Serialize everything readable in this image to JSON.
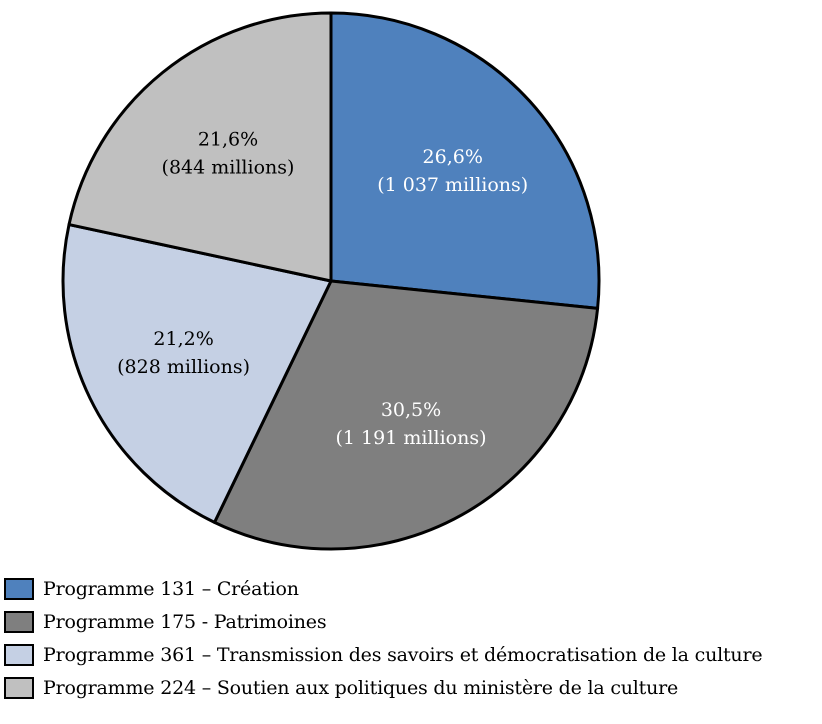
{
  "chart_data": {
    "type": "pie",
    "categories": [
      "Programme 131 – Création",
      "Programme 175 - Patrimoines",
      "Programme 361 – Transmission des savoirs et démocratisation de la culture",
      "Programme 224 – Soutien aux politiques du ministère de la culture"
    ],
    "values": [
      26.6,
      30.5,
      21.2,
      21.6
    ],
    "amounts": [
      "1 037 millions",
      "1 191 millions",
      "828 millions",
      "844 millions"
    ],
    "data_labels": [
      [
        "26,6%",
        "(1 037 millions)"
      ],
      [
        "30,5%",
        "(1 191 millions)"
      ],
      [
        "21,2%",
        "(828 millions)"
      ],
      [
        "21,6%",
        "(844 millions)"
      ]
    ],
    "colors": [
      "#4f81bd",
      "#7f7f7f",
      "#c5d0e4",
      "#c0c0c0"
    ],
    "start_angle": "top",
    "direction": "clockwise",
    "legend_position": "bottom",
    "title": ""
  },
  "legend": {
    "items": [
      {
        "label": "Programme 131 – Création",
        "color": "#4f81bd"
      },
      {
        "label": "Programme 175 - Patrimoines",
        "color": "#7f7f7f"
      },
      {
        "label": "Programme 361 – Transmission des savoirs et démocratisation de la culture",
        "color": "#c5d0e4"
      },
      {
        "label": "Programme 224 – Soutien aux politiques du ministère de la culture",
        "color": "#c0c0c0"
      }
    ]
  }
}
